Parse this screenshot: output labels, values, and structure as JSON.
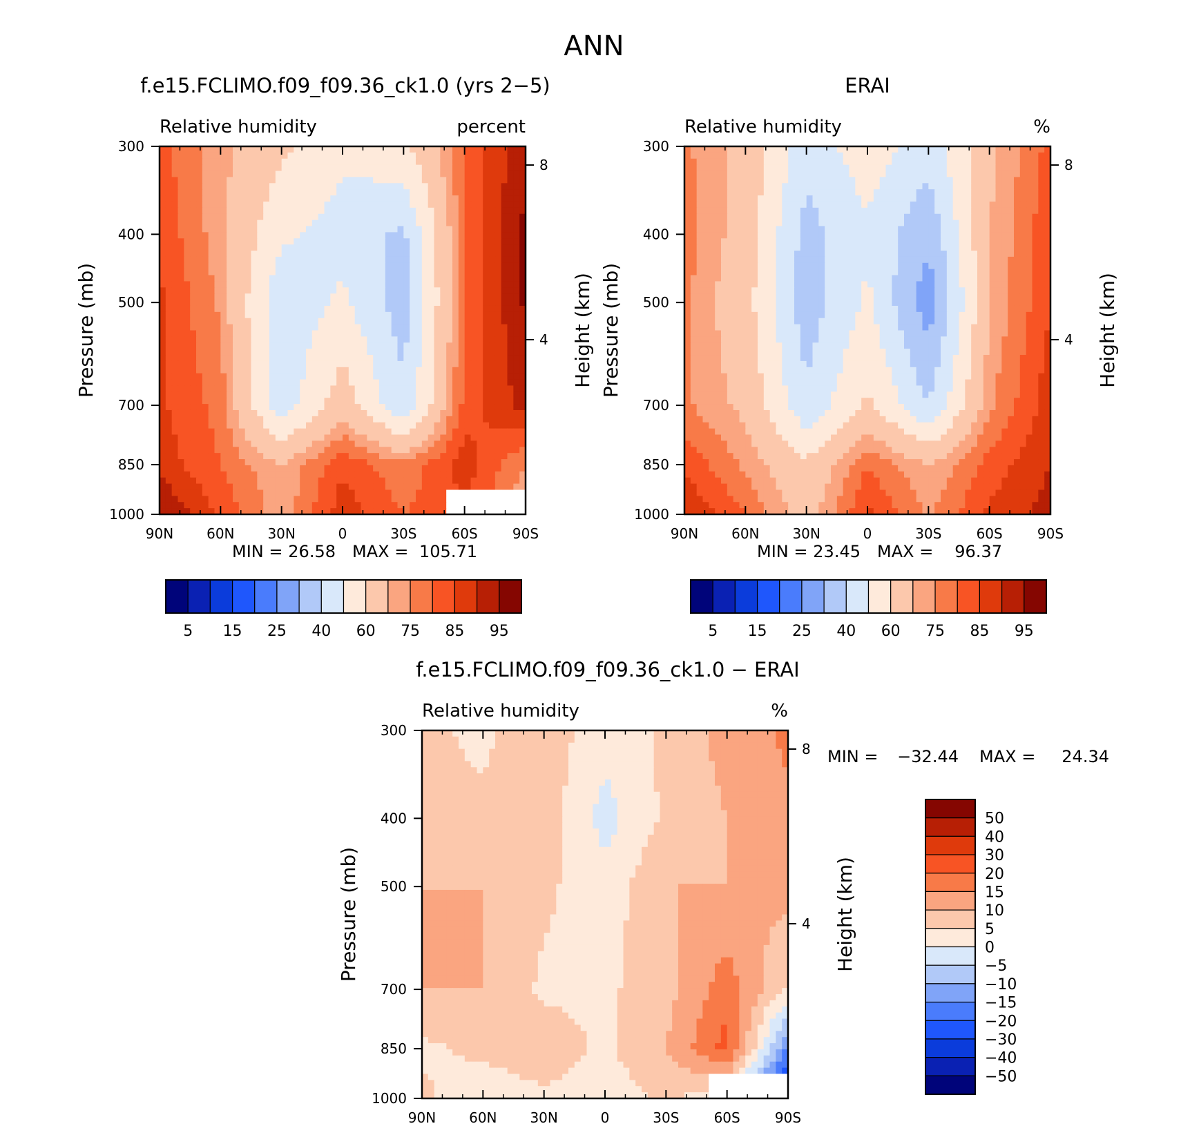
{
  "page_title": "ANN",
  "chart_data": [
    {
      "type": "heatmap",
      "title": "f.e15.FCLIMO.f09_f09.36_ck1.0 (yrs 2−5)",
      "subtitle_left": "Relative humidity",
      "subtitle_right": "percent",
      "xlabel": "",
      "ylabel": "Pressure (mb)",
      "ylabel_right": "Height (km)",
      "x_ticks": [
        "90N",
        "60N",
        "30N",
        "0",
        "30S",
        "60S",
        "90S"
      ],
      "y_ticks": [
        "300",
        "400",
        "500",
        "700",
        "850",
        "1000"
      ],
      "y_right_ticks": [
        "8",
        "4"
      ],
      "min_label": "MIN =",
      "min_value": "26.58",
      "max_label": "MAX =",
      "max_value": "105.71",
      "colorbar_labels": [
        "5",
        "15",
        "25",
        "40",
        "60",
        "75",
        "85",
        "95"
      ],
      "field": {
        "lat": [
          90,
          60,
          30,
          0,
          -30,
          -60,
          -90
        ],
        "pressure": [
          300,
          400,
          500,
          700,
          850,
          1000
        ],
        "values": [
          [
            82,
            72,
            62,
            52,
            58,
            80,
            95
          ],
          [
            84,
            72,
            52,
            46,
            38,
            80,
            96
          ],
          [
            86,
            74,
            42,
            52,
            35,
            80,
            96
          ],
          [
            86,
            78,
            44,
            66,
            42,
            82,
            92
          ],
          [
            88,
            80,
            70,
            84,
            76,
            88,
            75
          ],
          [
            96,
            84,
            72,
            88,
            80,
            84,
            70
          ]
        ],
        "missing_region": {
          "lat": [
            -50,
            -90
          ],
          "pressure": [
            925,
            1000
          ]
        }
      }
    },
    {
      "type": "heatmap",
      "title": "ERAI",
      "subtitle_left": "Relative humidity",
      "subtitle_right": "%",
      "xlabel": "",
      "ylabel": "Pressure (mb)",
      "ylabel_right": "Height (km)",
      "x_ticks": [
        "90N",
        "60N",
        "30N",
        "0",
        "30S",
        "60S",
        "90S"
      ],
      "y_ticks": [
        "300",
        "400",
        "500",
        "700",
        "850",
        "1000"
      ],
      "y_right_ticks": [
        "8",
        "4"
      ],
      "min_label": "MIN =",
      "min_value": "23.45",
      "max_label": "MAX =",
      "max_value": "96.37",
      "colorbar_labels": [
        "5",
        "15",
        "25",
        "40",
        "60",
        "75",
        "85",
        "95"
      ],
      "field": {
        "lat": [
          90,
          60,
          30,
          0,
          -30,
          -60,
          -90
        ],
        "pressure": [
          300,
          400,
          500,
          700,
          850,
          1000
        ],
        "values": [
          [
            76,
            68,
            44,
            56,
            44,
            68,
            82
          ],
          [
            78,
            66,
            36,
            48,
            32,
            70,
            84
          ],
          [
            76,
            64,
            34,
            52,
            24,
            70,
            85
          ],
          [
            76,
            68,
            42,
            62,
            40,
            74,
            88
          ],
          [
            84,
            74,
            62,
            80,
            70,
            82,
            90
          ],
          [
            90,
            80,
            66,
            86,
            74,
            86,
            92
          ]
        ]
      }
    },
    {
      "type": "heatmap",
      "title": "f.e15.FCLIMO.f09_f09.36_ck1.0 − ERAI",
      "subtitle_left": "Relative humidity",
      "subtitle_right": "%",
      "xlabel": "",
      "ylabel": "Pressure (mb)",
      "ylabel_right": "Height (km)",
      "x_ticks": [
        "90N",
        "60N",
        "30N",
        "0",
        "30S",
        "60S",
        "90S"
      ],
      "y_ticks": [
        "300",
        "400",
        "500",
        "700",
        "850",
        "1000"
      ],
      "y_right_ticks": [
        "8",
        "4"
      ],
      "min_label": "MIN =",
      "min_value": "−32.44",
      "max_label": "MAX =",
      "max_value": "24.34",
      "colorbar_labels": [
        "50",
        "40",
        "30",
        "20",
        "15",
        "10",
        "5",
        "0",
        "−5",
        "−10",
        "−15",
        "−20",
        "−30",
        "−40",
        "−50"
      ],
      "field": {
        "lat": [
          90,
          60,
          30,
          0,
          -30,
          -60,
          -90
        ],
        "pressure": [
          300,
          400,
          500,
          700,
          850,
          1000
        ],
        "values": [
          [
            6,
            4,
            8,
            2,
            6,
            12,
            16
          ],
          [
            6,
            6,
            8,
            -2,
            6,
            10,
            14
          ],
          [
            10,
            10,
            6,
            2,
            10,
            10,
            12
          ],
          [
            10,
            10,
            4,
            4,
            8,
            18,
            4
          ],
          [
            4,
            6,
            8,
            4,
            10,
            22,
            -16
          ],
          [
            6,
            2,
            4,
            2,
            6,
            0,
            -32
          ]
        ],
        "missing_region": {
          "lat": [
            -50,
            -90
          ],
          "pressure": [
            925,
            1000
          ]
        }
      }
    }
  ],
  "colors": {
    "abs_palette": [
      "#00047a",
      "#0a21b3",
      "#0b3cdb",
      "#1f57fc",
      "#4a7cfc",
      "#80a4f8",
      "#b1c9f8",
      "#d9e8fa",
      "#feeadb",
      "#fcc8ac",
      "#faa580",
      "#f87a48",
      "#f85424",
      "#df3a0c",
      "#b71f05",
      "#850601"
    ],
    "diff_palette": [
      "#00047a",
      "#0a21b3",
      "#0b3cdb",
      "#1f57fc",
      "#4a7cfc",
      "#80a4f8",
      "#b1c9f8",
      "#d9e8fa",
      "#feeadb",
      "#fcc8ac",
      "#faa580",
      "#f87a48",
      "#f85424",
      "#df3a0c",
      "#b71f05",
      "#850601"
    ]
  }
}
